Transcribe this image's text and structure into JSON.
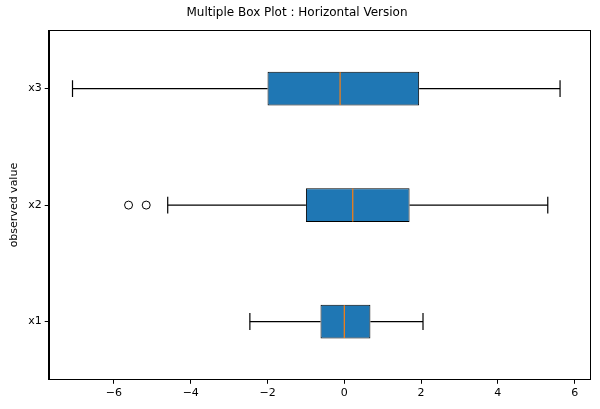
{
  "chart_data": {
    "type": "box",
    "title": "Multiple Box Plot : Horizontal Version",
    "ylabel": "observed value",
    "orientation": "horizontal",
    "categories": [
      "x1",
      "x2",
      "x3"
    ],
    "boxes": [
      {
        "whisker_low": -2.46,
        "q1": -0.62,
        "median": 0.0,
        "q3": 0.68,
        "whisker_high": 2.05,
        "outliers": []
      },
      {
        "whisker_low": -4.6,
        "q1": -1.0,
        "median": 0.22,
        "q3": 1.7,
        "whisker_high": 5.3,
        "outliers": [
          -5.62,
          -5.16
        ]
      },
      {
        "whisker_low": -7.08,
        "q1": -2.0,
        "median": -0.11,
        "q3": 1.95,
        "whisker_high": 5.62,
        "outliers": []
      }
    ],
    "color": "#1f77b4",
    "xlim": [
      -7.7,
      6.4
    ],
    "xticks": [
      {
        "value": -6,
        "label": "−6"
      },
      {
        "value": -4,
        "label": "−4"
      },
      {
        "value": -2,
        "label": "−2"
      },
      0,
      2,
      4,
      6
    ],
    "grid": false
  }
}
